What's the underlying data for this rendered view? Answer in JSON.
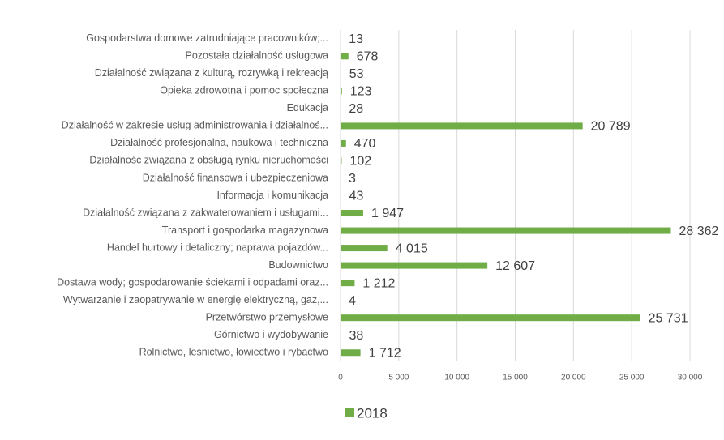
{
  "chart_data": {
    "type": "barh",
    "categories": [
      "Gospodarstwa domowe zatrudniające pracowników;...",
      "Pozostała działalność usługowa",
      "Działalność związana z kulturą, rozrywką i rekreacją",
      "Opieka zdrowotna i pomoc społeczna",
      "Edukacja",
      "Działalność w zakresie usług administrowania i działalnoś...",
      "Działalność profesjonalna, naukowa i techniczna",
      "Działalność związana z obsługą rynku nieruchomości",
      "Działalność finansowa i ubezpieczeniowa",
      "Informacja i komunikacja",
      "Działalność związana z zakwaterowaniem i usługami...",
      "Transport i gospodarka magazynowa",
      "Handel hurtowy i detaliczny; naprawa pojazdów...",
      "Budownictwo",
      "Dostawa wody; gospodarowanie ściekami i odpadami oraz...",
      "Wytwarzanie i zaopatrywanie w energię elektryczną, gaz,...",
      "Przetwórstwo przemysłowe",
      "Górnictwo i wydobywanie",
      "Rolnictwo, leśnictwo, łowiectwo i rybactwo"
    ],
    "series": [
      {
        "name": "2018",
        "color": "#70ad47",
        "values": [
          13,
          678,
          53,
          123,
          28,
          20789,
          470,
          102,
          3,
          43,
          1947,
          28362,
          4015,
          12607,
          1212,
          4,
          25731,
          38,
          1712
        ],
        "value_labels": [
          "13",
          "678",
          "53",
          "123",
          "28",
          "20 789",
          "470",
          "102",
          "3",
          "43",
          "1 947",
          "28 362",
          "4 015",
          "12 607",
          "1 212",
          "4",
          "25 731",
          "38",
          "1 712"
        ]
      }
    ],
    "xlim": [
      0,
      30000
    ],
    "xticks": [
      0,
      {
        "value": 5000,
        "label": "5 000"
      },
      {
        "value": 10000,
        "label": "10 000"
      },
      {
        "value": 15000,
        "label": "15 000"
      },
      {
        "value": 20000,
        "label": "20 000"
      },
      {
        "value": 25000,
        "label": "25 000"
      },
      {
        "value": 30000,
        "label": "30 000"
      }
    ],
    "grid": true,
    "legend": "bottom"
  }
}
